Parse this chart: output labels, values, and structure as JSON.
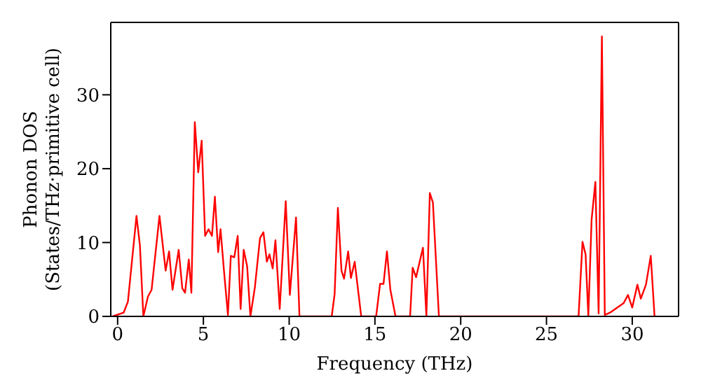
{
  "chart_data": {
    "type": "line",
    "xlabel": "Frequency (THz)",
    "ylabel": "Phonon DOS\n(States/THz·primitive cell)",
    "xlim": [
      -0.4,
      32.7
    ],
    "ylim": [
      0,
      39.8
    ],
    "xticks": [
      0,
      5,
      10,
      15,
      20,
      25,
      30
    ],
    "yticks": [
      0,
      10,
      20,
      30
    ],
    "marker": "none",
    "line_style": "solid",
    "series": [
      {
        "color": "#ff0000",
        "x": [
          -0.3,
          0.35,
          0.6,
          1.1,
          1.3,
          1.5,
          1.77,
          1.98,
          2.44,
          2.8,
          3.0,
          3.2,
          3.56,
          3.77,
          3.93,
          4.15,
          4.3,
          4.5,
          4.7,
          4.9,
          5.1,
          5.3,
          5.5,
          5.67,
          5.86,
          6.0,
          6.2,
          6.43,
          6.6,
          6.8,
          7.0,
          7.17,
          7.35,
          7.55,
          7.74,
          8.0,
          8.3,
          8.5,
          8.7,
          8.85,
          9.04,
          9.2,
          9.45,
          9.8,
          10.04,
          10.4,
          10.6,
          12.48,
          12.65,
          12.84,
          13.05,
          13.2,
          13.44,
          13.6,
          13.82,
          14.2,
          15.07,
          15.3,
          15.5,
          15.7,
          15.9,
          16.2,
          17.05,
          17.2,
          17.4,
          17.8,
          18.0,
          18.2,
          18.38,
          18.73,
          26.87,
          27.1,
          27.28,
          27.44,
          27.63,
          27.85,
          28.04,
          28.23,
          28.4,
          28.7,
          29.5,
          29.75,
          30.0,
          30.3,
          30.5,
          30.8,
          31.08,
          31.3
        ],
        "values": [
          0,
          0.5,
          2,
          13.6,
          9.6,
          0,
          2.7,
          3.6,
          13.6,
          6.2,
          8.8,
          3.6,
          9,
          3.8,
          3.2,
          7.7,
          3.2,
          26.3,
          19.5,
          23.8,
          10.9,
          11.8,
          10.9,
          16.2,
          8.7,
          11.8,
          6.2,
          0.2,
          8.2,
          8.0,
          10.9,
          1,
          9,
          6.8,
          0,
          3.9,
          10.6,
          11.4,
          7.4,
          8.4,
          6.5,
          10.3,
          1,
          15.6,
          2.9,
          13.4,
          0,
          0,
          3,
          14.7,
          6.2,
          5.1,
          8.8,
          5.2,
          7.4,
          0,
          0,
          4.4,
          4.4,
          8.8,
          3.6,
          0,
          0,
          6.6,
          5.3,
          9.3,
          0,
          16.7,
          15.4,
          0,
          0,
          10.1,
          8.4,
          0,
          13.1,
          18.2,
          0.4,
          37.9,
          0.2,
          0.5,
          1.8,
          2.9,
          1.2,
          4.3,
          2.4,
          4.3,
          8.2,
          0
        ]
      }
    ]
  }
}
